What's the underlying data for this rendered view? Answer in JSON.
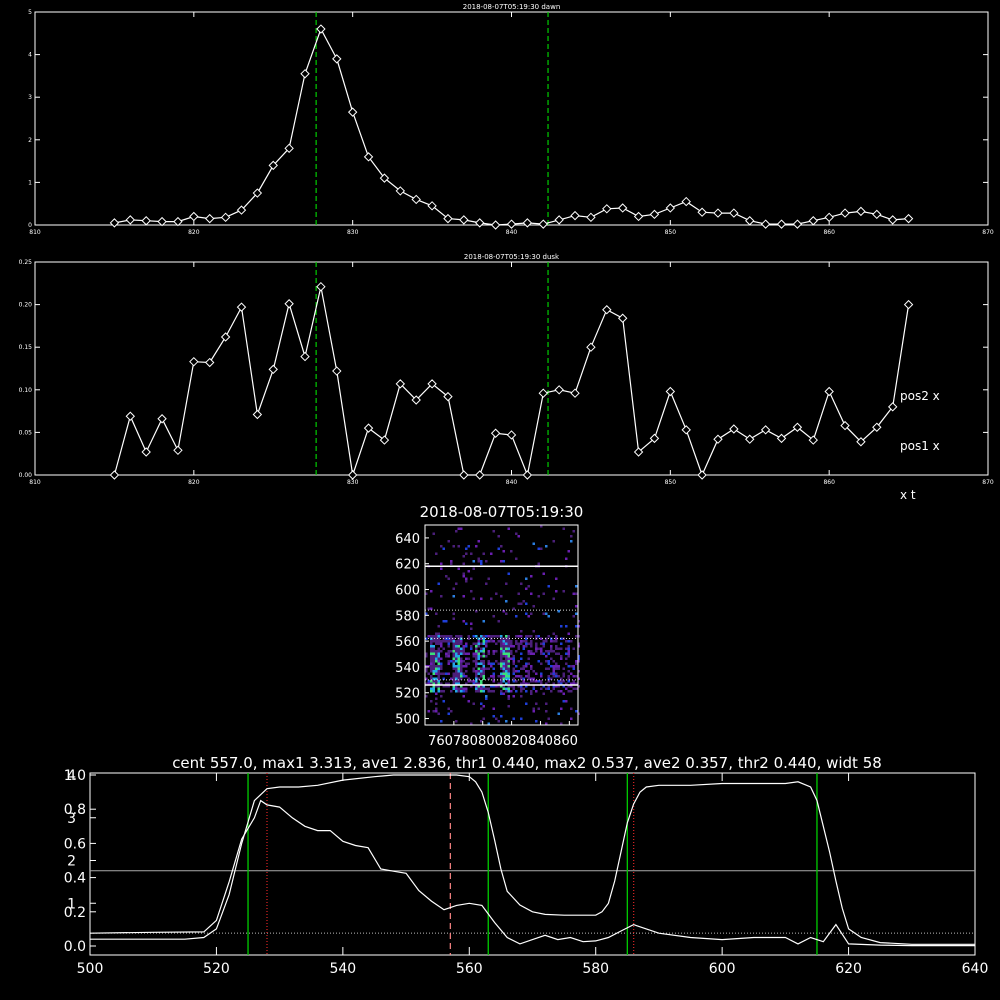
{
  "colors": {
    "background": "#000000",
    "axes": "#ffffff",
    "marker_line": "#00cc00",
    "threshold": "#aaaaaa",
    "center": "#ff8888",
    "max_pos": "#cc2222"
  },
  "chart_data": [
    {
      "type": "line",
      "title": "2018-08-07T05:19:30 dawn",
      "xlim": [
        810,
        870
      ],
      "ylim": [
        0,
        5
      ],
      "xticks": [
        810,
        820,
        830,
        840,
        850,
        860,
        870
      ],
      "yticks": [
        0,
        1,
        2,
        3,
        4,
        5
      ],
      "markers": "diamond",
      "vlines": [
        827.7,
        842.3
      ],
      "x": [
        815,
        816,
        817,
        818,
        819,
        820,
        821,
        822,
        823,
        824,
        825,
        826,
        827,
        828,
        829,
        830,
        831,
        832,
        833,
        834,
        835,
        836,
        837,
        838,
        839,
        840,
        841,
        842,
        843,
        844,
        845,
        846,
        847,
        848,
        849,
        850,
        851,
        852,
        853,
        854,
        855,
        856,
        857,
        858,
        859,
        860,
        861,
        862,
        863,
        864,
        865
      ],
      "y": [
        0.05,
        0.12,
        0.1,
        0.08,
        0.08,
        0.2,
        0.15,
        0.18,
        0.35,
        0.75,
        1.4,
        1.8,
        3.55,
        4.6,
        3.9,
        2.65,
        1.6,
        1.1,
        0.8,
        0.6,
        0.45,
        0.15,
        0.12,
        0.05,
        0.0,
        0.02,
        0.05,
        0.02,
        0.12,
        0.22,
        0.18,
        0.38,
        0.4,
        0.2,
        0.25,
        0.4,
        0.55,
        0.3,
        0.28,
        0.28,
        0.1,
        0.02,
        0.02,
        0.02,
        0.1,
        0.18,
        0.28,
        0.32,
        0.25,
        0.12,
        0.15
      ]
    },
    {
      "type": "line",
      "title": "2018-08-07T05:19:30 dusk",
      "xlim": [
        810,
        870
      ],
      "ylim": [
        0,
        0.25
      ],
      "xticks": [
        810,
        820,
        830,
        840,
        850,
        860,
        870
      ],
      "yticks": [
        0.0,
        0.05,
        0.1,
        0.15,
        0.2,
        0.25
      ],
      "markers": "diamond",
      "vlines": [
        827.7,
        842.3
      ],
      "annotations": [
        "pos2 x",
        "pos1 x",
        "x t"
      ],
      "x": [
        815,
        816,
        817,
        818,
        819,
        820,
        821,
        822,
        823,
        824,
        825,
        826,
        827,
        828,
        829,
        830,
        831,
        832,
        833,
        834,
        835,
        836,
        837,
        838,
        839,
        840,
        841,
        842,
        843,
        844,
        845,
        846,
        847,
        848,
        849,
        850,
        851,
        852,
        853,
        854,
        855,
        856,
        857,
        858,
        859,
        860,
        861,
        862,
        863,
        864,
        865
      ],
      "y": [
        0.0,
        0.069,
        0.027,
        0.066,
        0.029,
        0.133,
        0.132,
        0.162,
        0.197,
        0.071,
        0.124,
        0.201,
        0.139,
        0.221,
        0.122,
        0.0,
        0.055,
        0.041,
        0.107,
        0.088,
        0.107,
        0.092,
        0.0,
        0.0,
        0.049,
        0.047,
        0.0,
        0.096,
        0.1,
        0.096,
        0.15,
        0.194,
        0.184,
        0.027,
        0.043,
        0.098,
        0.053,
        0.0,
        0.042,
        0.054,
        0.042,
        0.053,
        0.043,
        0.056,
        0.041,
        0.098,
        0.058,
        0.039,
        0.056,
        0.08,
        0.2
      ]
    },
    {
      "type": "heatmap",
      "title": "2018-08-07T05:19:30",
      "xlim": [
        760,
        866
      ],
      "ylim": [
        495,
        650
      ],
      "xticks": [
        760,
        780,
        800,
        820,
        840,
        860
      ],
      "yticks": [
        500,
        520,
        540,
        560,
        580,
        600,
        620,
        640
      ],
      "hlines_solid": [
        618,
        526
      ],
      "hlines_dotted": [
        584,
        562,
        530
      ],
      "bright_columns": [
        766,
        782,
        798,
        815
      ]
    },
    {
      "type": "line",
      "title": "cent 557.0, max1 3.313, ave1 2.836, thr1 0.440, max2 0.537, ave2 0.357, thr2 0.440, widt 58",
      "xlim": [
        500,
        640
      ],
      "xticks": [
        500,
        520,
        540,
        560,
        580,
        600,
        620,
        640
      ],
      "yticks_left_a": [
        0.0,
        0.2,
        0.4,
        0.6,
        0.8,
        1.0
      ],
      "yticks_left_b": [
        1,
        2,
        3,
        4
      ],
      "green_lines": [
        525,
        563,
        585,
        615
      ],
      "red_dotted_lines": [
        528,
        586
      ],
      "center_line": 557,
      "threshold_solid": 0.44,
      "threshold_dotted": 0.075,
      "series": [
        {
          "x": [
            500,
            505,
            510,
            515,
            518,
            520,
            522,
            524,
            526,
            528,
            530,
            533,
            536,
            540,
            545,
            548,
            550,
            552,
            554,
            556,
            558,
            560,
            561,
            562,
            563,
            564,
            565,
            566,
            568,
            570,
            572,
            575,
            578,
            580,
            581,
            582,
            583,
            584,
            585,
            586,
            587,
            588,
            590,
            595,
            600,
            605,
            610,
            612,
            614,
            615,
            616,
            617,
            618,
            619,
            620,
            622,
            625,
            630,
            635,
            640
          ],
          "y": [
            0.04,
            0.04,
            0.04,
            0.04,
            0.05,
            0.1,
            0.3,
            0.6,
            0.85,
            0.92,
            0.93,
            0.93,
            0.94,
            0.97,
            0.99,
            1.0,
            1.0,
            1.0,
            1.0,
            1.0,
            1.0,
            0.99,
            0.96,
            0.9,
            0.78,
            0.62,
            0.45,
            0.32,
            0.24,
            0.2,
            0.185,
            0.18,
            0.18,
            0.18,
            0.2,
            0.25,
            0.38,
            0.55,
            0.72,
            0.83,
            0.9,
            0.93,
            0.94,
            0.94,
            0.95,
            0.95,
            0.95,
            0.96,
            0.93,
            0.85,
            0.7,
            0.55,
            0.38,
            0.22,
            0.1,
            0.05,
            0.02,
            0.01,
            0.01,
            0.01
          ]
        },
        {
          "x": [
            500,
            510,
            518,
            520,
            522,
            524,
            526,
            527,
            528,
            530,
            532,
            534,
            536,
            538,
            540,
            542,
            544,
            546,
            548,
            550,
            552,
            554,
            556,
            558,
            560,
            562,
            564,
            566,
            568,
            570,
            572,
            574,
            576,
            578,
            580,
            582,
            584,
            586,
            588,
            590,
            595,
            600,
            605,
            610,
            612,
            614,
            616,
            618,
            620,
            625,
            630,
            640
          ],
          "y": [
            0.3,
            0.32,
            0.33,
            0.6,
            1.5,
            2.5,
            3.0,
            3.4,
            3.3,
            3.25,
            3.0,
            2.8,
            2.7,
            2.7,
            2.45,
            2.35,
            2.3,
            1.8,
            1.75,
            1.7,
            1.3,
            1.05,
            0.85,
            0.95,
            1.0,
            0.95,
            0.55,
            0.2,
            0.05,
            0.15,
            0.25,
            0.15,
            0.2,
            0.1,
            0.12,
            0.2,
            0.35,
            0.5,
            0.4,
            0.3,
            0.2,
            0.15,
            0.2,
            0.2,
            0.05,
            0.2,
            0.1,
            0.5,
            0.05,
            0.02,
            0.01,
            0.01
          ]
        }
      ]
    }
  ]
}
